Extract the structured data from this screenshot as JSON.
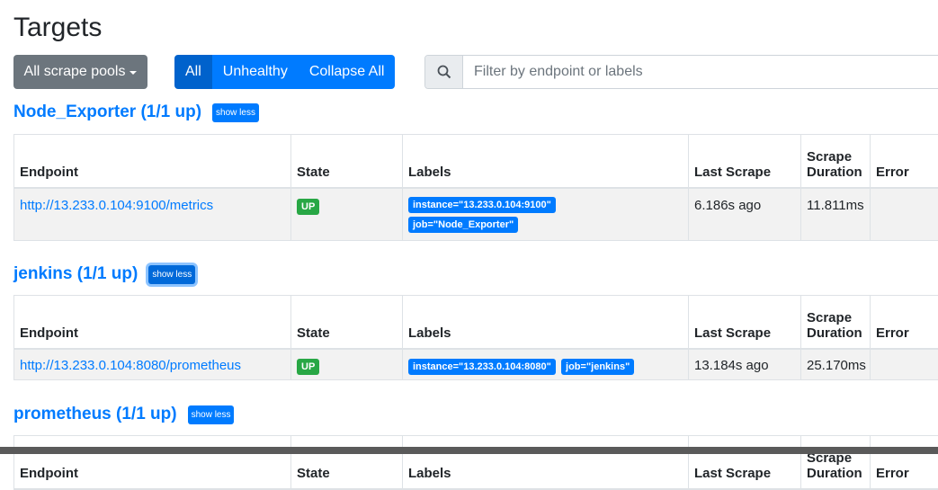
{
  "page": {
    "title": "Targets"
  },
  "toolbar": {
    "pools_label": "All scrape pools",
    "filters": [
      "All",
      "Unhealthy",
      "Collapse All"
    ],
    "active_filter": "All",
    "search_placeholder": "Filter by endpoint or labels"
  },
  "columns": [
    "Endpoint",
    "State",
    "Labels",
    "Last Scrape",
    "Scrape Duration",
    "Error"
  ],
  "pools": [
    {
      "title": "Node_Exporter (1/1 up)",
      "toggle": "show less",
      "rows": [
        {
          "endpoint": "http://13.233.0.104:9100/metrics",
          "state": "UP",
          "labels": [
            "instance=\"13.233.0.104:9100\"",
            "job=\"Node_Exporter\""
          ],
          "last_scrape": "6.186s ago",
          "duration": "11.811ms",
          "error": ""
        }
      ]
    },
    {
      "title": "jenkins (1/1 up)",
      "toggle": "show less",
      "rows": [
        {
          "endpoint": "http://13.233.0.104:8080/prometheus",
          "state": "UP",
          "labels": [
            "instance=\"13.233.0.104:8080\"",
            "job=\"jenkins\""
          ],
          "last_scrape": "13.184s ago",
          "duration": "25.170ms",
          "error": ""
        }
      ]
    },
    {
      "title": "prometheus (1/1 up)",
      "toggle": "show less",
      "rows": []
    }
  ],
  "colors": {
    "primary": "#007bff",
    "success": "#28a745",
    "secondary": "#6c757d"
  }
}
